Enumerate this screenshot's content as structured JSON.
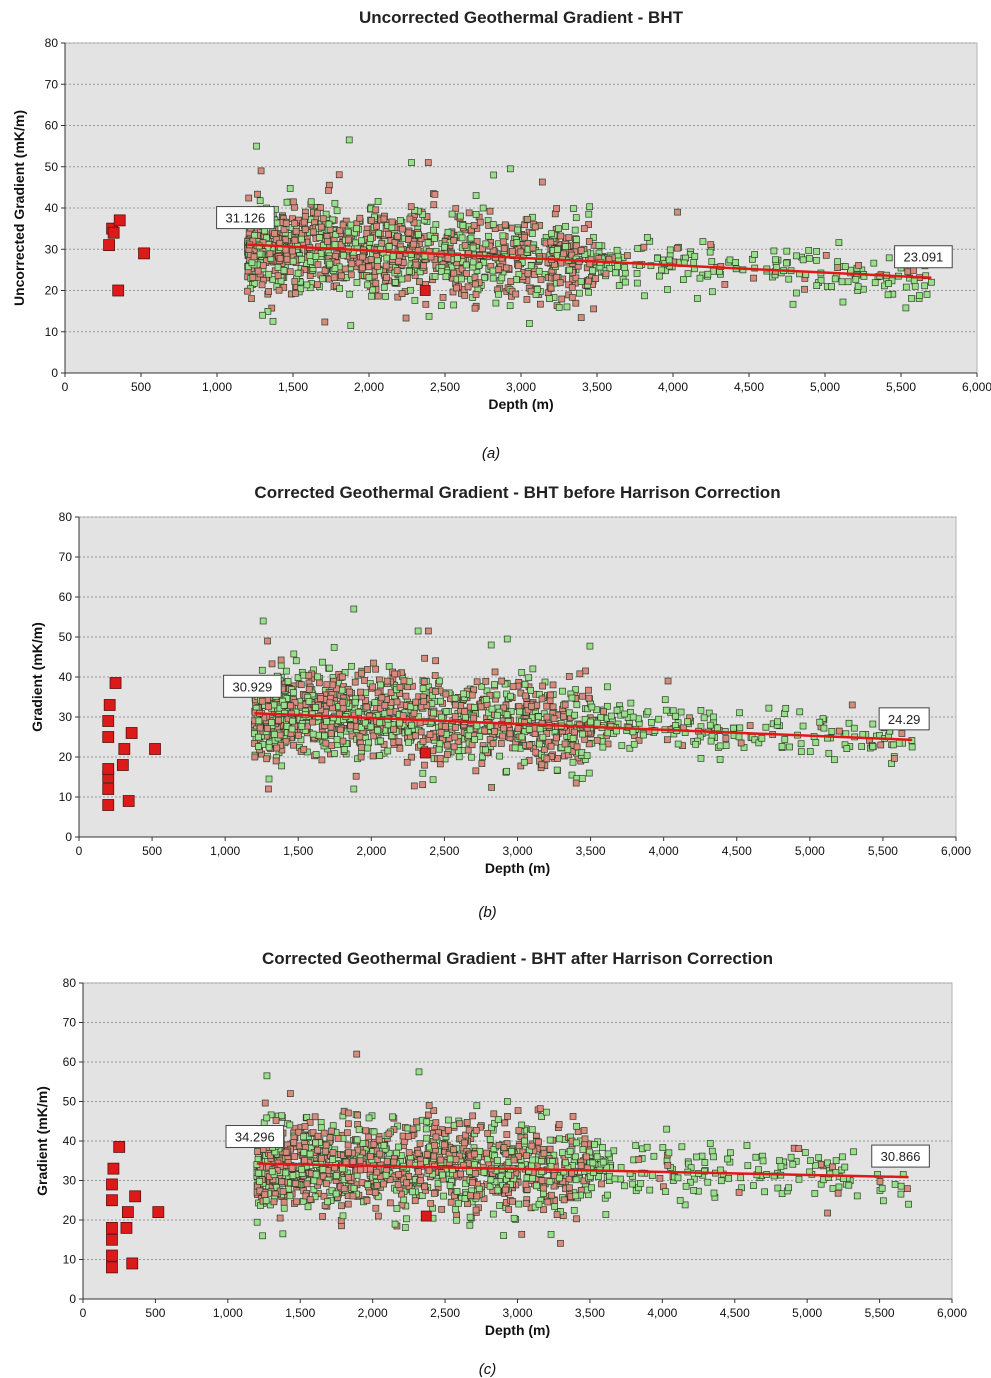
{
  "chart_data": [
    {
      "type": "scatter",
      "title": "Uncorrected Geothermal Gradient - BHT",
      "caption_letter": "a",
      "xlabel": "Depth (m)",
      "ylabel": "Uncorrected Gradient (mK/m)",
      "xlim": [
        0,
        6000
      ],
      "ylim": [
        0,
        80
      ],
      "xticks": [
        "0",
        "500",
        "1,000",
        "1,500",
        "2,000",
        "2,500",
        "3,000",
        "3,500",
        "4,000",
        "4,500",
        "5,000",
        "5,500",
        "6,000"
      ],
      "yticks": [
        "0",
        "10",
        "20",
        "30",
        "40",
        "50",
        "60",
        "70",
        "80"
      ],
      "grid": "horizontal dotted",
      "background": "#e3e3e3",
      "trend": {
        "x": [
          1200,
          5700
        ],
        "y": [
          31.126,
          23.091
        ],
        "start_label": "31.126",
        "end_label": "23.091",
        "color": "#e21818"
      },
      "cloud": {
        "x_range": [
          1200,
          5700
        ],
        "spread_sd": 5.5,
        "count": 1400,
        "colors": [
          "#98e08a",
          "#d98a7c"
        ]
      },
      "shallow_points": {
        "x": [
          290,
          310,
          320,
          360,
          350,
          520
        ],
        "y": [
          31,
          35,
          34,
          37,
          20,
          29
        ],
        "color": "#dd1a1a"
      },
      "marked_point": {
        "x": 2370,
        "y": 20,
        "color": "#dd1a1a"
      },
      "outliers": {
        "x": [
          1260,
          1290,
          1870,
          2280,
          2390,
          2820,
          2930,
          4030,
          1300,
          1880,
          4530,
          5700
        ],
        "y": [
          55,
          49,
          56.5,
          51,
          51,
          48,
          49.5,
          39,
          14,
          11.5,
          23,
          22
        ]
      }
    },
    {
      "type": "scatter",
      "title": "Corrected Geothermal Gradient - BHT before Harrison Correction",
      "caption_letter": "b",
      "xlabel": "Depth (m)",
      "ylabel": "Gradient (mK/m)",
      "xlim": [
        0,
        6000
      ],
      "ylim": [
        0,
        80
      ],
      "xticks": [
        "0",
        "500",
        "1,000",
        "1,500",
        "2,000",
        "2,500",
        "3,000",
        "3,500",
        "4,000",
        "4,500",
        "5,000",
        "5,500",
        "6,000"
      ],
      "yticks": [
        "0",
        "10",
        "20",
        "30",
        "40",
        "50",
        "60",
        "70",
        "80"
      ],
      "grid": "horizontal dotted",
      "background": "#e3e3e3",
      "trend": {
        "x": [
          1200,
          5700
        ],
        "y": [
          30.929,
          24.29
        ],
        "start_label": "30.929",
        "end_label": "24.29",
        "color": "#e21818"
      },
      "cloud": {
        "x_range": [
          1200,
          5700
        ],
        "spread_sd": 5.5,
        "count": 1400,
        "colors": [
          "#98e08a",
          "#d98a7c"
        ]
      },
      "shallow_points": {
        "x": [
          200,
          200,
          200,
          200,
          200,
          200,
          210,
          250,
          300,
          310,
          340,
          360,
          520
        ],
        "y": [
          8,
          12,
          15,
          17,
          25,
          29,
          33,
          38.5,
          18,
          22,
          9,
          26,
          22
        ],
        "color": "#dd1a1a"
      },
      "marked_point": {
        "x": 2370,
        "y": 21,
        "color": "#dd1a1a"
      },
      "outliers": {
        "x": [
          1260,
          1290,
          1880,
          2320,
          2390,
          2820,
          2930,
          4030,
          1300,
          1880,
          4530,
          5700
        ],
        "y": [
          54,
          49,
          57,
          51.5,
          51.5,
          48,
          49.5,
          39,
          14.5,
          12,
          23.5,
          22.5
        ]
      }
    },
    {
      "type": "scatter",
      "title": "Corrected Geothermal Gradient - BHT after Harrison Correction",
      "caption_letter": "c",
      "xlabel": "Depth (m)",
      "ylabel": "Gradient (mK/m)",
      "xlim": [
        0,
        6000
      ],
      "ylim": [
        0,
        80
      ],
      "xticks": [
        "0",
        "500",
        "1,000",
        "1,500",
        "2,000",
        "2,500",
        "3,000",
        "3,500",
        "4,000",
        "4,500",
        "5,000",
        "5,500",
        "6,000"
      ],
      "yticks": [
        "0",
        "10",
        "20",
        "30",
        "40",
        "50",
        "60",
        "70",
        "80"
      ],
      "grid": "horizontal dotted",
      "background": "#e3e3e3",
      "trend": {
        "x": [
          1200,
          5700
        ],
        "y": [
          34.296,
          30.866
        ],
        "start_label": "34.296",
        "end_label": "30.866",
        "color": "#e21818"
      },
      "cloud": {
        "x_range": [
          1200,
          5700
        ],
        "spread_sd": 6,
        "count": 1400,
        "colors": [
          "#98e08a",
          "#d98a7c"
        ]
      },
      "shallow_points": {
        "x": [
          200,
          200,
          200,
          200,
          200,
          200,
          210,
          250,
          300,
          310,
          340,
          360,
          520
        ],
        "y": [
          8,
          11,
          15,
          18,
          25,
          29,
          33,
          38.5,
          18,
          22,
          9,
          26,
          22
        ],
        "color": "#dd1a1a"
      },
      "marked_point": {
        "x": 2370,
        "y": 21,
        "color": "#dd1a1a"
      },
      "outliers": {
        "x": [
          1270,
          1890,
          2320,
          2930,
          2390,
          1240,
          4030,
          4530,
          5700,
          1380
        ],
        "y": [
          56.5,
          62,
          57.5,
          50,
          49,
          16,
          43,
          27,
          24,
          16.5
        ]
      }
    }
  ]
}
